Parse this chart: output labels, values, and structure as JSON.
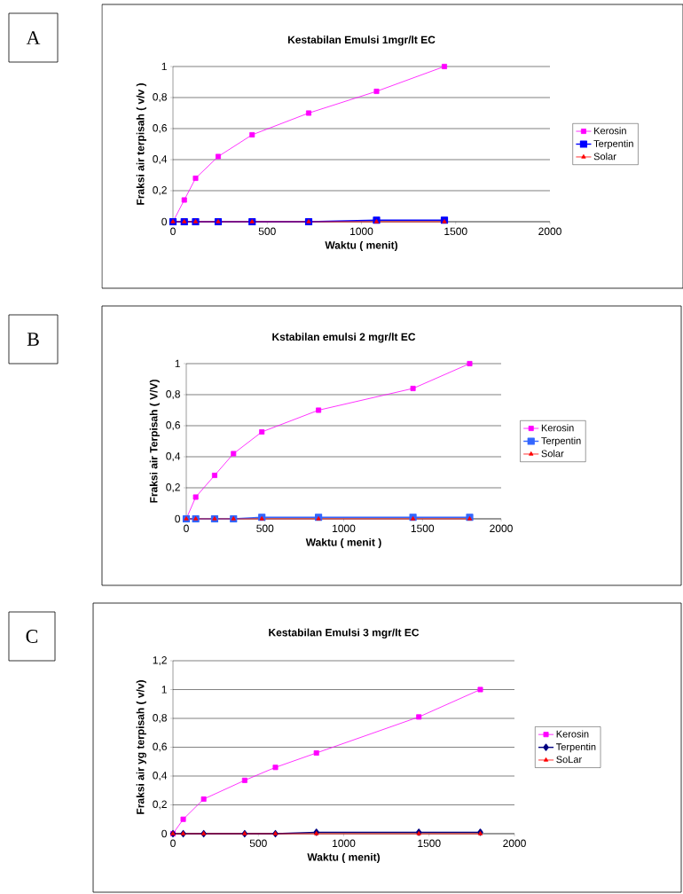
{
  "chart_data": [
    {
      "type": "line",
      "title": "Kestabilan Emulsi 1mgr/lt EC",
      "xlabel": "Waktu ( menit)",
      "ylabel": "Fraksi air terpisah ( v/v )",
      "annotations": [
        "A"
      ],
      "x": [
        0,
        60,
        120,
        240,
        420,
        720,
        1080,
        1440
      ],
      "series": [
        {
          "name": "Kerosin",
          "color": "#ff00ff",
          "marker": "square",
          "values": [
            0,
            0.14,
            0.28,
            0.42,
            0.56,
            0.7,
            0.84,
            1.0
          ]
        },
        {
          "name": "Terpentin",
          "color": "#0000ff",
          "marker": "square",
          "values": [
            0,
            0,
            0,
            0,
            0,
            0,
            0.01,
            0.01
          ]
        },
        {
          "name": "Solar",
          "color": "#ff0000",
          "marker": "triangle",
          "values": [
            0,
            0,
            0,
            0,
            0,
            0,
            0,
            0
          ]
        }
      ],
      "xlim": [
        0,
        2000
      ],
      "xticks": [
        0,
        500,
        1000,
        1500,
        2000
      ],
      "ylim": [
        0,
        1
      ],
      "yticks": [
        0,
        {
          "value": 0.2,
          "label": "0,2"
        },
        {
          "value": 0.4,
          "label": "0,4"
        },
        {
          "value": 0.6,
          "label": "0,6"
        },
        {
          "value": 0.8,
          "label": "0,8"
        },
        1
      ],
      "grid": "y",
      "legend": "right"
    },
    {
      "type": "line",
      "title": "Kstabilan emulsi 2 mgr/lt EC",
      "xlabel": "Waktu ( menit )",
      "ylabel": "Fraksi air Terpisah ( V/V)",
      "annotations": [
        "B"
      ],
      "x": [
        0,
        60,
        180,
        300,
        480,
        840,
        1440,
        1800
      ],
      "series": [
        {
          "name": "Kerosin",
          "color": "#ff00ff",
          "marker": "square",
          "values": [
            0,
            0.14,
            0.28,
            0.42,
            0.56,
            0.7,
            0.84,
            1.0
          ]
        },
        {
          "name": "Terpentin",
          "color": "#3366ff",
          "marker": "square",
          "values": [
            0,
            0,
            0,
            0,
            0.01,
            0.01,
            0.01,
            0.01
          ]
        },
        {
          "name": "Solar",
          "color": "#ff0000",
          "marker": "triangle",
          "values": [
            0,
            0,
            0,
            0,
            0,
            0,
            0,
            0
          ]
        }
      ],
      "xlim": [
        0,
        2000
      ],
      "xticks": [
        0,
        500,
        1000,
        1500,
        2000
      ],
      "ylim": [
        0,
        1
      ],
      "yticks": [
        0,
        {
          "value": 0.2,
          "label": "0,2"
        },
        {
          "value": 0.4,
          "label": "0,4"
        },
        {
          "value": 0.6,
          "label": "0,6"
        },
        {
          "value": 0.8,
          "label": "0,8"
        },
        1
      ],
      "grid": "y",
      "legend": "right"
    },
    {
      "type": "line",
      "title": "Kestabilan Emulsi 3 mgr/lt EC",
      "xlabel": "Waktu ( menit)",
      "ylabel": "Fraksi air yg terpisah ( v/v)",
      "annotations": [
        "C"
      ],
      "x": [
        0,
        60,
        180,
        420,
        600,
        840,
        1440,
        1800
      ],
      "series": [
        {
          "name": "Kerosin",
          "color": "#ff00ff",
          "marker": "square",
          "values": [
            0,
            0.1,
            0.24,
            0.37,
            0.46,
            0.56,
            0.81,
            1.0
          ]
        },
        {
          "name": "Terpentin",
          "color": "#000080",
          "marker": "diamond",
          "values": [
            0,
            0,
            0,
            0,
            0,
            0.01,
            0.01,
            0.01
          ]
        },
        {
          "name": "SoLar",
          "color": "#ff0000",
          "marker": "triangle",
          "values": [
            0,
            0,
            0,
            0,
            0,
            0,
            0,
            0
          ]
        }
      ],
      "xlim": [
        0,
        2000
      ],
      "xticks": [
        0,
        500,
        1000,
        1500,
        2000
      ],
      "ylim": [
        0,
        1.2
      ],
      "yticks": [
        0,
        {
          "value": 0.2,
          "label": "0,2"
        },
        {
          "value": 0.4,
          "label": "0,4"
        },
        {
          "value": 0.6,
          "label": "0,6"
        },
        {
          "value": 0.8,
          "label": "0,8"
        },
        1,
        {
          "value": 1.2,
          "label": "1,2"
        }
      ],
      "grid": "y",
      "legend": "right"
    }
  ]
}
